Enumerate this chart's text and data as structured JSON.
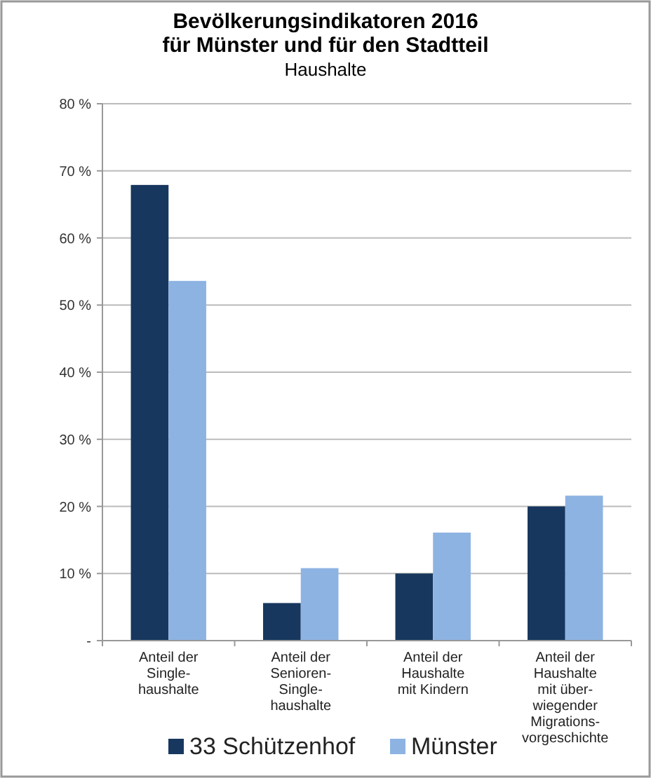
{
  "chart_data": {
    "type": "bar",
    "title": "Bevölkerungsindikatoren 2016\nfür Münster und für den Stadtteil",
    "subtitle": "Haushalte",
    "categories": [
      "Anteil der\nSingle-\nhaushalte",
      "Anteil der\nSenioren-\nSingle-\nhaushalte",
      "Anteil der\nHaushalte\nmit Kindern",
      "Anteil der\nHaushalte\nmit über-\nwiegender\nMigrations-\nvorgeschichte"
    ],
    "series": [
      {
        "name": "33 Schützenhof",
        "color": "#17375e",
        "values": [
          67.9,
          5.6,
          10.0,
          20.0
        ]
      },
      {
        "name": "Münster",
        "color": "#8db3e2",
        "values": [
          53.6,
          10.8,
          16.1,
          21.6
        ]
      }
    ],
    "ylim": [
      0,
      80
    ],
    "yticks": [
      {
        "value": 0,
        "label": "-"
      },
      {
        "value": 10,
        "label": "10 %"
      },
      {
        "value": 20,
        "label": "20 %"
      },
      {
        "value": 30,
        "label": "30 %"
      },
      {
        "value": 40,
        "label": "40 %"
      },
      {
        "value": 50,
        "label": "50 %"
      },
      {
        "value": 60,
        "label": "60 %"
      },
      {
        "value": 70,
        "label": "70 %"
      },
      {
        "value": 80,
        "label": "80 %"
      }
    ],
    "grid": "y",
    "legend": "bottom"
  }
}
